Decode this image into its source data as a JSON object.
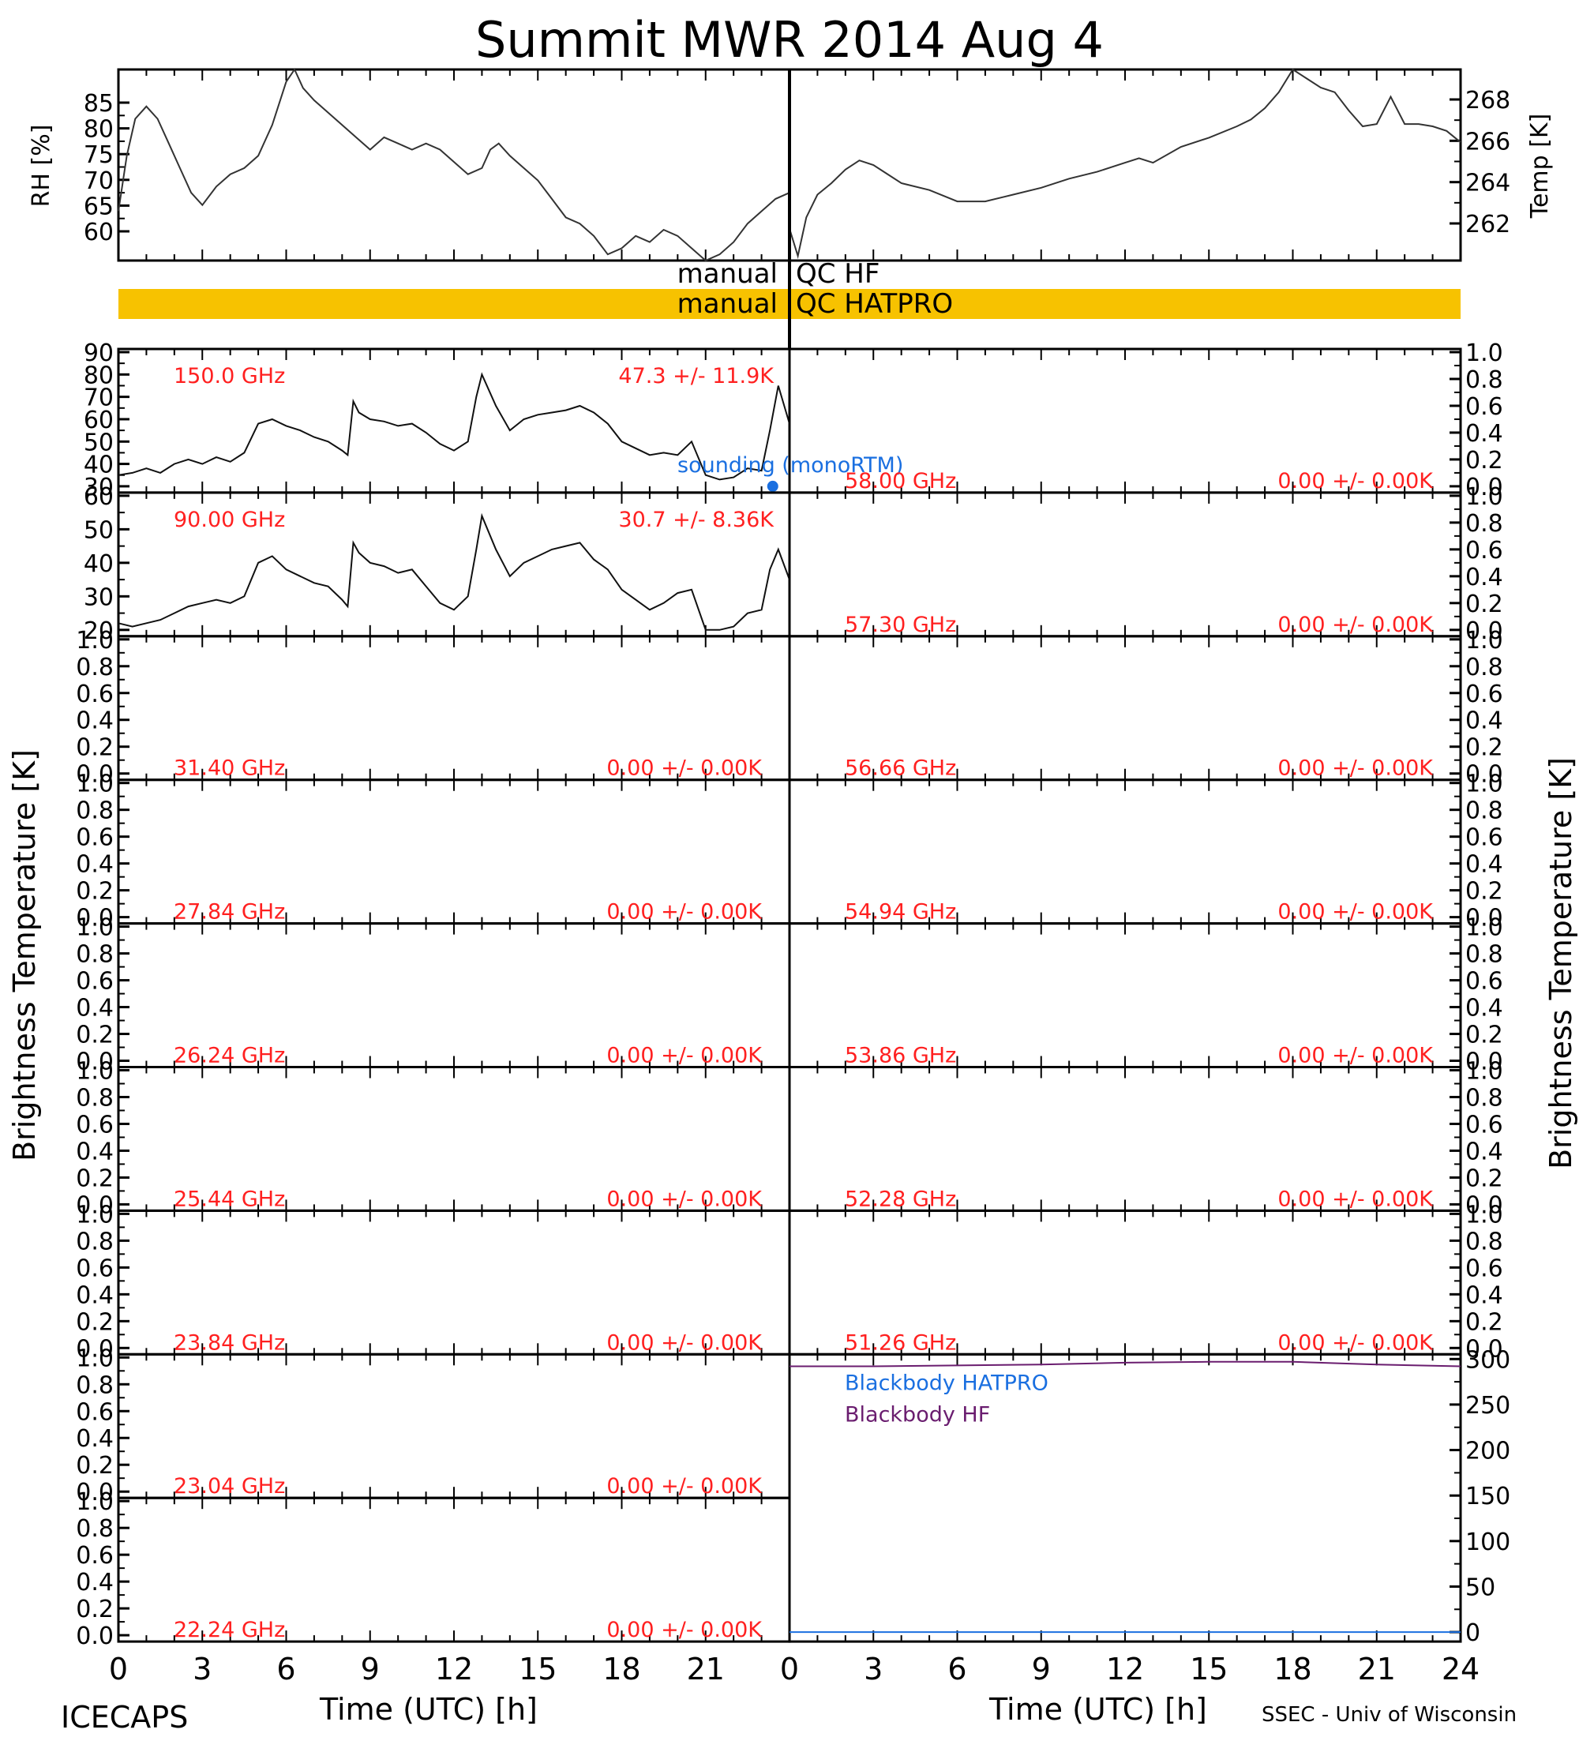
{
  "title": "Summit MWR 2014 Aug  4",
  "footer": {
    "left": "ICECAPS",
    "right": "SSEC - Univ of Wisconsin",
    "xlabel_left": "Time (UTC) [h]",
    "xlabel_right": "Time (UTC) [h]"
  },
  "side_labels": {
    "left": "Brightness Temperature [K]",
    "right": "Brightness Temperature [K]",
    "bb_right": "Temp [K]"
  },
  "qc": {
    "hf_left": "manual",
    "hf_right": "QC HF",
    "hatpro_left": "manual",
    "hatpro_right": "QC HATPRO",
    "hatpro_color": "#f7c200"
  },
  "colors": {
    "red": "#ff2020",
    "blue": "#1a6fe0",
    "purple": "#6a1d6f"
  },
  "chart_data": [
    {
      "type": "line",
      "id": "rh",
      "ylabel": "RH [%]",
      "xlim": [
        0,
        24
      ],
      "ylim": [
        55,
        86
      ],
      "yticks": [
        "60",
        "65",
        "70",
        "75",
        "80",
        "85"
      ],
      "x": [
        0,
        0.3,
        0.6,
        1.0,
        1.4,
        1.8,
        2.2,
        2.6,
        3.0,
        3.5,
        4.0,
        4.5,
        5.0,
        5.5,
        6.0,
        6.3,
        6.6,
        7.0,
        7.5,
        8.0,
        8.5,
        9.0,
        9.5,
        10.0,
        10.5,
        11.0,
        11.5,
        12.0,
        12.5,
        13.0,
        13.3,
        13.6,
        14.0,
        14.5,
        15.0,
        15.5,
        16.0,
        16.5,
        17.0,
        17.5,
        18.0,
        18.5,
        19.0,
        19.5,
        20.0,
        20.5,
        21.0,
        21.5,
        22.0,
        22.5,
        23.0,
        23.5,
        24.0
      ],
      "values": [
        63,
        72,
        78,
        80,
        78,
        74,
        70,
        66,
        64,
        67,
        69,
        70,
        72,
        77,
        84,
        86,
        83,
        81,
        79,
        77,
        75,
        73,
        75,
        74,
        73,
        74,
        73,
        71,
        69,
        70,
        73,
        74,
        72,
        70,
        68,
        65,
        62,
        61,
        59,
        56,
        57,
        59,
        58,
        60,
        59,
        57,
        55,
        56,
        58,
        61,
        63,
        65,
        66
      ]
    },
    {
      "type": "line",
      "id": "temp",
      "ylabel": "Temp [K]",
      "xlim": [
        0,
        24
      ],
      "ylim": [
        260.6,
        269.0
      ],
      "yticks": [
        "262",
        "264",
        "266",
        "268"
      ],
      "x": [
        0,
        0.3,
        0.6,
        1.0,
        1.5,
        2.0,
        2.5,
        3.0,
        3.5,
        4.0,
        5.0,
        6.0,
        7.0,
        8.0,
        9.0,
        10.0,
        11.0,
        12.0,
        12.5,
        13.0,
        14.0,
        15.0,
        16.0,
        16.5,
        17.0,
        17.5,
        18.0,
        18.5,
        19.0,
        19.5,
        20.0,
        20.5,
        21.0,
        21.5,
        22.0,
        22.5,
        23.0,
        23.5,
        24.0
      ],
      "values": [
        262,
        260.8,
        262.5,
        263.5,
        264.0,
        264.6,
        265.0,
        264.8,
        264.4,
        264.0,
        263.7,
        263.2,
        263.2,
        263.5,
        263.8,
        264.2,
        264.5,
        264.9,
        265.1,
        264.9,
        265.6,
        266.0,
        266.5,
        266.8,
        267.3,
        268.0,
        269.0,
        268.6,
        268.2,
        268.0,
        267.2,
        266.5,
        266.6,
        267.8,
        266.6,
        266.6,
        266.5,
        266.3,
        265.8
      ]
    },
    {
      "type": "line",
      "id": "tb150",
      "label": "150.0 GHz",
      "stat": "47.3 +/-  11.9K",
      "annotation": "sounding (monoRTM)",
      "xlim": [
        0,
        24
      ],
      "ylim": [
        30,
        90
      ],
      "yticks": [
        "30",
        "40",
        "50",
        "60",
        "70",
        "80",
        "90"
      ],
      "sounding_point": {
        "x": 23.4,
        "y": 30
      },
      "x": [
        0,
        0.5,
        1.0,
        1.5,
        2.0,
        2.5,
        3.0,
        3.5,
        4.0,
        4.5,
        5.0,
        5.5,
        6.0,
        6.5,
        7.0,
        7.5,
        8.0,
        8.2,
        8.4,
        8.6,
        9.0,
        9.5,
        10.0,
        10.5,
        11.0,
        11.5,
        12.0,
        12.5,
        12.8,
        13.0,
        13.5,
        14.0,
        14.5,
        15.0,
        15.5,
        16.0,
        16.5,
        17.0,
        17.5,
        18.0,
        18.5,
        19.0,
        19.5,
        20.0,
        20.5,
        21.0,
        21.5,
        22.0,
        22.5,
        23.0,
        23.3,
        23.6,
        24.0
      ],
      "values": [
        35,
        36,
        38,
        36,
        40,
        42,
        40,
        43,
        41,
        45,
        58,
        60,
        57,
        55,
        52,
        50,
        46,
        44,
        68,
        63,
        60,
        59,
        57,
        58,
        54,
        49,
        46,
        50,
        70,
        80,
        66,
        55,
        60,
        62,
        63,
        64,
        66,
        63,
        58,
        50,
        47,
        44,
        45,
        44,
        50,
        35,
        33,
        34,
        38,
        37,
        55,
        75,
        58
      ]
    },
    {
      "type": "line",
      "id": "tb90",
      "label": "90.00 GHz",
      "stat": "30.7 +/-   8.36K",
      "xlim": [
        0,
        24
      ],
      "ylim": [
        20,
        60
      ],
      "yticks": [
        "20",
        "30",
        "40",
        "50",
        "60"
      ],
      "x": [
        0,
        0.5,
        1.0,
        1.5,
        2.0,
        2.5,
        3.0,
        3.5,
        4.0,
        4.5,
        5.0,
        5.5,
        6.0,
        6.5,
        7.0,
        7.5,
        8.0,
        8.2,
        8.4,
        8.6,
        9.0,
        9.5,
        10.0,
        10.5,
        11.0,
        11.5,
        12.0,
        12.5,
        12.8,
        13.0,
        13.5,
        14.0,
        14.5,
        15.0,
        15.5,
        16.0,
        16.5,
        17.0,
        17.5,
        18.0,
        18.5,
        19.0,
        19.5,
        20.0,
        20.5,
        21.0,
        21.5,
        22.0,
        22.5,
        23.0,
        23.3,
        23.6,
        24.0
      ],
      "values": [
        22,
        21,
        22,
        23,
        25,
        27,
        28,
        29,
        28,
        30,
        40,
        42,
        38,
        36,
        34,
        33,
        29,
        27,
        46,
        43,
        40,
        39,
        37,
        38,
        33,
        28,
        26,
        30,
        44,
        54,
        44,
        36,
        40,
        42,
        44,
        45,
        46,
        41,
        38,
        32,
        29,
        26,
        28,
        31,
        32,
        20,
        19,
        21,
        25,
        26,
        38,
        44,
        35
      ]
    },
    {
      "type": "line",
      "id": "bb",
      "ylabel": "Temp [K]",
      "xlim": [
        0,
        24
      ],
      "ylim": [
        0,
        300
      ],
      "yticks": [
        "0",
        "50",
        "100",
        "150",
        "200",
        "250",
        "300"
      ],
      "series": [
        {
          "name": "Blackbody HATPRO",
          "x": [
            0,
            24
          ],
          "values": [
            0,
            0
          ]
        },
        {
          "name": "Blackbody HF",
          "x": [
            0,
            3,
            6,
            9,
            12,
            15,
            18,
            21,
            24
          ],
          "values": [
            292,
            292,
            293,
            294,
            296,
            297,
            297,
            294,
            292
          ]
        }
      ]
    },
    {
      "type": "line",
      "id": "empty_channels",
      "ylim": [
        0.0,
        1.0
      ],
      "yticks": [
        "0.0",
        "0.2",
        "0.4",
        "0.6",
        "0.8",
        "1.0"
      ],
      "left_labels": [
        "31.40 GHz",
        "27.84 GHz",
        "26.24 GHz",
        "25.44 GHz",
        "23.84 GHz",
        "23.04 GHz",
        "22.24 GHz"
      ],
      "right_labels": [
        "58.00 GHz",
        "57.30 GHz",
        "56.66 GHz",
        "54.94 GHz",
        "53.86 GHz",
        "52.28 GHz",
        "51.26 GHz"
      ],
      "stat": "0.00 +/-  0.00K"
    }
  ],
  "x_axis": {
    "left_ticks": [
      "0",
      "3",
      "6",
      "9",
      "12",
      "15",
      "18",
      "21"
    ],
    "right_ticks": [
      "0",
      "3",
      "6",
      "9",
      "12",
      "15",
      "18",
      "21",
      "24"
    ]
  }
}
